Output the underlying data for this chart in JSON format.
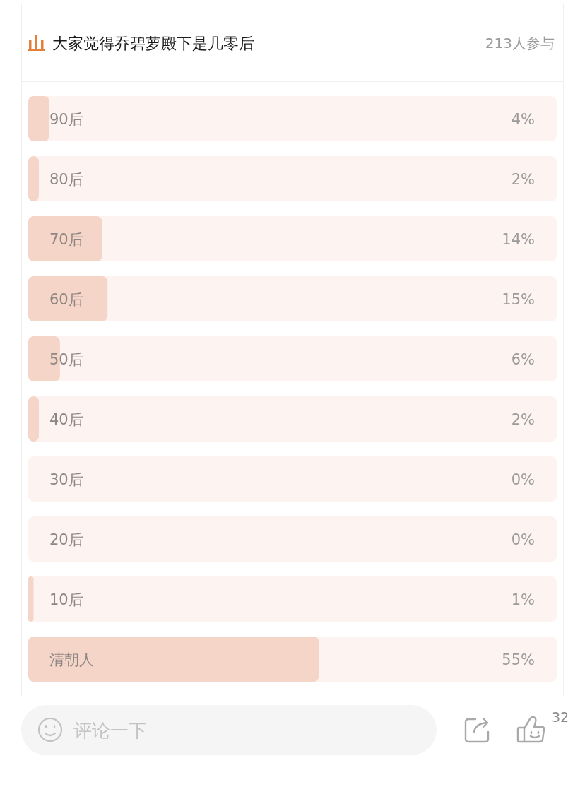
{
  "chart_data": {
    "type": "bar",
    "orientation": "horizontal",
    "title": "大家觉得乔碧萝殿下是几零后",
    "subtitle": "213人参与",
    "categories": [
      "90后",
      "80后",
      "70后",
      "60后",
      "50后",
      "40后",
      "30后",
      "20后",
      "10后",
      "清朝人"
    ],
    "values": [
      4,
      2,
      14,
      15,
      6,
      2,
      0,
      0,
      1,
      55
    ],
    "value_labels": [
      "4%",
      "2%",
      "14%",
      "15%",
      "6%",
      "2%",
      "0%",
      "0%",
      "1%",
      "55%"
    ],
    "color": "#f6d5c9",
    "xlim": [
      0,
      100
    ],
    "annotations": [
      "评论一下",
      "32"
    ]
  }
}
